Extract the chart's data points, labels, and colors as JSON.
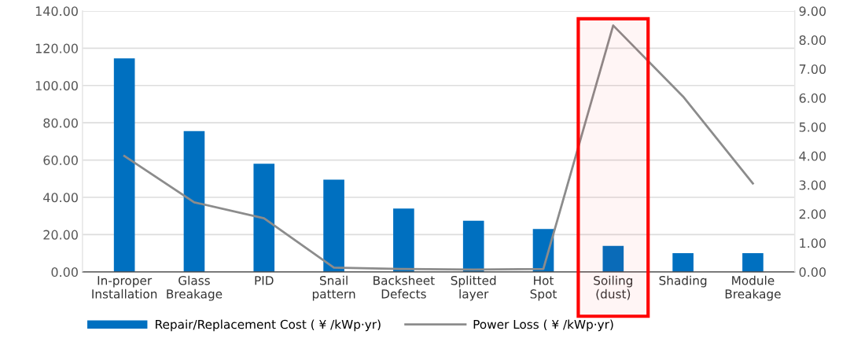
{
  "chart_data": {
    "type": "bar",
    "categories": [
      "In-proper\nInstallation",
      "Glass\nBreakage",
      "PID",
      "Snail\npattern",
      "Backsheet\nDefects",
      "Splitted\nlayer",
      "Hot\nSpot",
      "Soiling\n(dust)",
      "Shading",
      "Module\nBreakage"
    ],
    "series": [
      {
        "name": "Repair/Replacement Cost ( ¥ /kWp·yr)",
        "type": "bar",
        "color": "#0070c0",
        "values": [
          114.5,
          75.5,
          58,
          49.5,
          34,
          27.5,
          23,
          14,
          10,
          10
        ]
      },
      {
        "name": "Power Loss ( ¥ /kWp·yr)",
        "type": "line",
        "axis": "y2",
        "color": "#8c8c8c",
        "values": [
          4.0,
          2.4,
          1.85,
          0.15,
          0.1,
          0.08,
          0.1,
          8.5,
          6.05,
          3.05
        ]
      }
    ],
    "ylim": [
      0,
      140
    ],
    "yticks": [
      {
        "value": 0,
        "label": "0.00"
      },
      {
        "value": 20,
        "label": "20.00"
      },
      {
        "value": 40,
        "label": "40.00"
      },
      {
        "value": 60,
        "label": "60.00"
      },
      {
        "value": 80,
        "label": "80.00"
      },
      {
        "value": 100,
        "label": "100.00"
      },
      {
        "value": 120,
        "label": "120.00"
      },
      {
        "value": 140,
        "label": "140.00"
      }
    ],
    "y2lim": [
      0,
      9
    ],
    "y2ticks": [
      {
        "value": 0,
        "label": "0.00"
      },
      {
        "value": 1,
        "label": "1.00"
      },
      {
        "value": 2,
        "label": "2.00"
      },
      {
        "value": 3,
        "label": "3.00"
      },
      {
        "value": 4,
        "label": "4.00"
      },
      {
        "value": 5,
        "label": "5.00"
      },
      {
        "value": 6,
        "label": "6.00"
      },
      {
        "value": 7,
        "label": "7.00"
      },
      {
        "value": 8,
        "label": "8.00"
      },
      {
        "value": 9,
        "label": "9.00"
      }
    ],
    "bands": [
      {
        "axis": "x",
        "from": "Soiling\n(dust)",
        "to": "Soiling\n(dust)",
        "color": "#ff0000"
      }
    ],
    "grid": "y",
    "legend": "bottom"
  }
}
